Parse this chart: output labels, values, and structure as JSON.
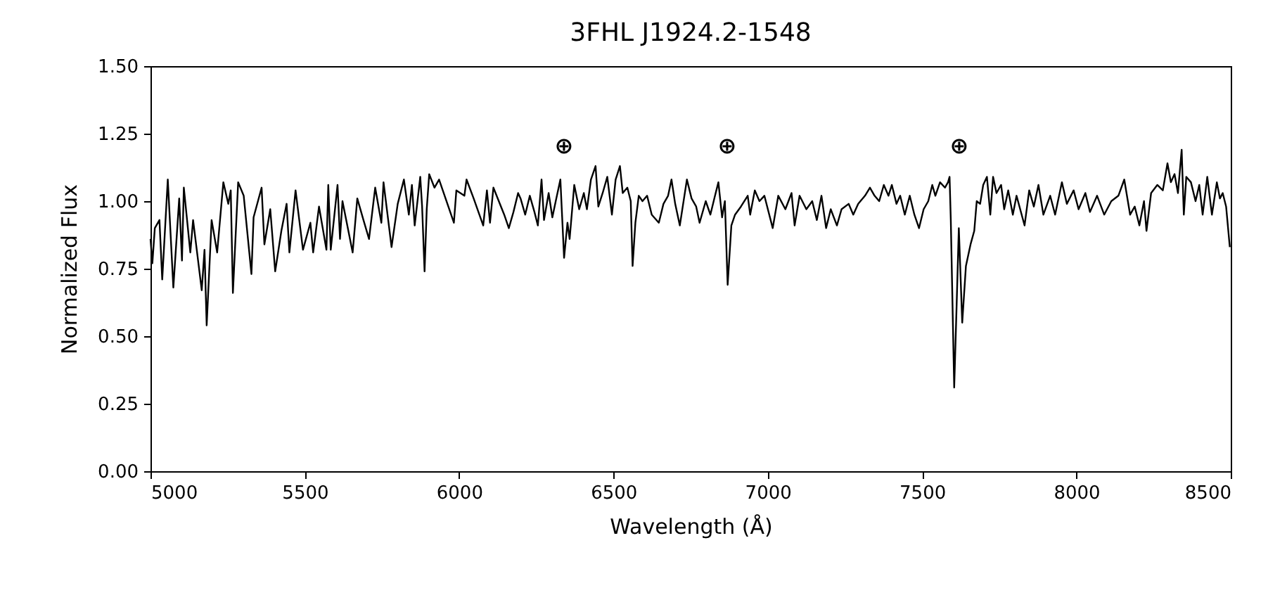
{
  "chart_data": {
    "type": "line",
    "title": "3FHL J1924.2-1548",
    "xlabel": "Wavelength (Å)",
    "ylabel": "Normalized Flux",
    "xlim": [
      5000,
      8500
    ],
    "xticks": [
      5000,
      5500,
      6000,
      6500,
      7000,
      7500,
      8000,
      8500
    ],
    "ylim": [
      0,
      1.5
    ],
    "yticks": [
      {
        "value": 0,
        "label": "0.00"
      },
      {
        "value": 0.25,
        "label": "0.25"
      },
      {
        "value": 0.5,
        "label": "0.50"
      },
      {
        "value": 0.75,
        "label": "0.75"
      },
      {
        "value": 1.0,
        "label": "1.00"
      },
      {
        "value": 1.25,
        "label": "1.25"
      },
      {
        "value": 1.5,
        "label": "1.50"
      }
    ],
    "grid": false,
    "marker": "none",
    "line_style": "solid",
    "annotations": [
      "⊕",
      "⊕",
      "⊕"
    ],
    "x": [
      5000,
      5006,
      5014,
      5029,
      5038,
      5056,
      5074,
      5093,
      5102,
      5108,
      5129,
      5138,
      5166,
      5175,
      5182,
      5198,
      5216,
      5236,
      5252,
      5260,
      5267,
      5284,
      5302,
      5327,
      5334,
      5360,
      5369,
      5388,
      5404,
      5424,
      5441,
      5450,
      5470,
      5494,
      5518,
      5527,
      5546,
      5570,
      5576,
      5584,
      5606,
      5614,
      5622,
      5655,
      5670,
      5690,
      5708,
      5728,
      5748,
      5755,
      5781,
      5801,
      5821,
      5837,
      5847,
      5856,
      5874,
      5880,
      5888,
      5895,
      5903,
      5920,
      5935,
      5956,
      5983,
      5991,
      6017,
      6024,
      6047,
      6078,
      6090,
      6100,
      6111,
      6146,
      6161,
      6176,
      6191,
      6199,
      6214,
      6229,
      6244,
      6255,
      6267,
      6275,
      6290,
      6302,
      6313,
      6328,
      6340,
      6351,
      6358,
      6373,
      6389,
      6404,
      6414,
      6427,
      6442,
      6451,
      6465,
      6480,
      6495,
      6507,
      6521,
      6530,
      6545,
      6556,
      6562,
      6571,
      6582,
      6594,
      6609,
      6624,
      6647,
      6662,
      6677,
      6688,
      6700,
      6715,
      6738,
      6753,
      6768,
      6779,
      6799,
      6814,
      6829,
      6840,
      6852,
      6861,
      6870,
      6882,
      6894,
      6913,
      6935,
      6943,
      6958,
      6973,
      6989,
      7016,
      7034,
      7057,
      7077,
      7087,
      7103,
      7125,
      7144,
      7159,
      7174,
      7189,
      7204,
      7224,
      7239,
      7262,
      7277,
      7293,
      7315,
      7331,
      7346,
      7361,
      7376,
      7391,
      7402,
      7417,
      7429,
      7444,
      7460,
      7475,
      7490,
      7505,
      7520,
      7533,
      7543,
      7558,
      7574,
      7584,
      7589,
      7593,
      7604,
      7612,
      7619,
      7630,
      7642,
      7657,
      7669,
      7677,
      7688,
      7698,
      7710,
      7721,
      7730,
      7741,
      7756,
      7766,
      7779,
      7794,
      7806,
      7832,
      7847,
      7862,
      7877,
      7893,
      7915,
      7931,
      7953,
      7969,
      7991,
      8007,
      8029,
      8044,
      8067,
      8090,
      8113,
      8136,
      8155,
      8174,
      8189,
      8204,
      8219,
      8227,
      8242,
      8262,
      8280,
      8295,
      8306,
      8318,
      8329,
      8341,
      8348,
      8356,
      8371,
      8386,
      8398,
      8409,
      8424,
      8439,
      8455,
      8465,
      8474,
      8485,
      8497
    ],
    "series": [
      {
        "color": "#000000",
        "values": [
          0.86,
          0.77,
          0.9,
          0.93,
          0.71,
          1.08,
          0.68,
          1.01,
          0.78,
          1.05,
          0.81,
          0.93,
          0.67,
          0.82,
          0.54,
          0.93,
          0.81,
          1.07,
          0.99,
          1.04,
          0.66,
          1.07,
          1.02,
          0.73,
          0.94,
          1.05,
          0.84,
          0.97,
          0.74,
          0.89,
          0.99,
          0.81,
          1.04,
          0.82,
          0.92,
          0.81,
          0.98,
          0.82,
          1.06,
          0.82,
          1.06,
          0.86,
          1.0,
          0.81,
          1.01,
          0.93,
          0.86,
          1.05,
          0.92,
          1.07,
          0.83,
          0.99,
          1.08,
          0.95,
          1.06,
          0.91,
          1.09,
          0.98,
          0.74,
          0.97,
          1.1,
          1.05,
          1.08,
          1.01,
          0.92,
          1.04,
          1.02,
          1.08,
          1.01,
          0.91,
          1.04,
          0.92,
          1.05,
          0.95,
          0.9,
          0.96,
          1.03,
          1.01,
          0.95,
          1.02,
          0.96,
          0.91,
          1.08,
          0.93,
          1.03,
          0.94,
          1.0,
          1.08,
          0.79,
          0.92,
          0.86,
          1.06,
          0.97,
          1.03,
          0.97,
          1.08,
          1.13,
          0.98,
          1.03,
          1.09,
          0.95,
          1.08,
          1.13,
          1.03,
          1.05,
          1.0,
          0.76,
          0.92,
          1.02,
          1.0,
          1.02,
          0.95,
          0.92,
          0.99,
          1.02,
          1.08,
          0.99,
          0.91,
          1.08,
          1.01,
          0.98,
          0.92,
          1.0,
          0.95,
          1.02,
          1.07,
          0.94,
          1.0,
          0.69,
          0.91,
          0.95,
          0.98,
          1.02,
          0.95,
          1.04,
          1.0,
          1.02,
          0.9,
          1.02,
          0.97,
          1.03,
          0.91,
          1.02,
          0.97,
          1.0,
          0.93,
          1.02,
          0.9,
          0.97,
          0.91,
          0.97,
          0.99,
          0.95,
          0.99,
          1.02,
          1.05,
          1.02,
          1.0,
          1.06,
          1.02,
          1.06,
          0.99,
          1.02,
          0.95,
          1.02,
          0.95,
          0.9,
          0.97,
          1.0,
          1.06,
          1.02,
          1.07,
          1.05,
          1.07,
          1.09,
          0.93,
          0.31,
          0.62,
          0.9,
          0.55,
          0.76,
          0.84,
          0.89,
          1.0,
          0.99,
          1.06,
          1.09,
          0.95,
          1.09,
          1.03,
          1.06,
          0.97,
          1.04,
          0.95,
          1.02,
          0.91,
          1.04,
          0.98,
          1.06,
          0.95,
          1.02,
          0.95,
          1.07,
          0.99,
          1.04,
          0.97,
          1.03,
          0.96,
          1.02,
          0.95,
          1.0,
          1.02,
          1.08,
          0.95,
          0.98,
          0.91,
          1.0,
          0.89,
          1.03,
          1.06,
          1.04,
          1.14,
          1.07,
          1.1,
          1.03,
          1.19,
          0.95,
          1.09,
          1.07,
          1.0,
          1.06,
          0.95,
          1.09,
          0.95,
          1.07,
          1.01,
          1.03,
          0.98,
          0.83
        ]
      }
    ]
  }
}
